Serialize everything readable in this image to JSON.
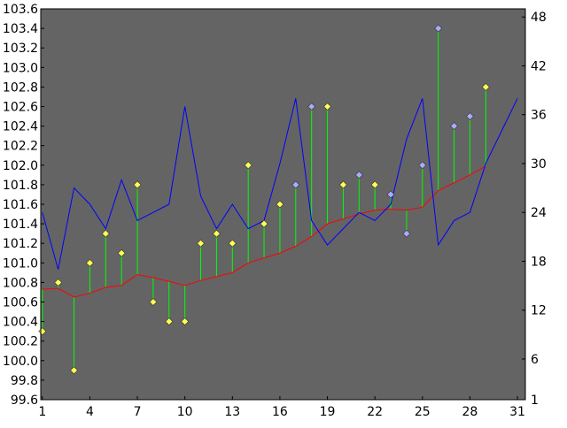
{
  "chart_data": {
    "type": "line",
    "title": "",
    "xlabel": "",
    "ylabel": "",
    "x_ticks": [
      "1",
      "4",
      "7",
      "10",
      "13",
      "16",
      "19",
      "22",
      "25",
      "28",
      "31"
    ],
    "y_left_ticks": [
      "99.6",
      "99.8",
      "100.0",
      "100.2",
      "100.4",
      "100.6",
      "100.8",
      "101.0",
      "101.2",
      "101.4",
      "101.6",
      "101.8",
      "102.0",
      "102.2",
      "102.4",
      "102.6",
      "102.8",
      "103.0",
      "103.2",
      "103.4",
      "103.6"
    ],
    "y_right_ticks": [
      "1",
      "6",
      "12",
      "18",
      "24",
      "30",
      "36",
      "42",
      "48"
    ],
    "ylim_left": [
      99.6,
      103.6
    ],
    "ylim_right": [
      1,
      49
    ],
    "xlim": [
      0.9,
      31.5
    ],
    "grid": false,
    "colors": {
      "plot_background": "#646464",
      "diamond_yellow": "#ffff55",
      "diamond_blue": "#aaaaff",
      "stem": "#00ff00",
      "moving_average": "#ff0000",
      "volume_line": "#0000ff"
    },
    "diamonds": {
      "x": [
        1,
        2,
        3,
        4,
        5,
        6,
        7,
        8,
        9,
        10,
        11,
        12,
        13,
        14,
        15,
        16,
        17,
        18,
        19,
        20,
        21,
        22,
        23,
        24,
        25,
        26,
        27,
        28,
        29
      ],
      "y": [
        100.3,
        100.8,
        99.9,
        101.0,
        101.3,
        101.1,
        101.8,
        100.6,
        100.4,
        100.4,
        101.2,
        101.3,
        101.2,
        102.0,
        101.4,
        101.6,
        101.8,
        102.6,
        102.6,
        101.8,
        101.9,
        101.8,
        101.7,
        101.3,
        102.0,
        103.4,
        102.4,
        102.5,
        102.8
      ],
      "colors": [
        "yellow",
        "yellow",
        "yellow",
        "yellow",
        "yellow",
        "yellow",
        "yellow",
        "yellow",
        "yellow",
        "yellow",
        "yellow",
        "yellow",
        "yellow",
        "yellow",
        "yellow",
        "yellow",
        "blue",
        "blue",
        "yellow",
        "yellow",
        "blue",
        "yellow",
        "blue",
        "blue",
        "blue",
        "blue",
        "blue",
        "blue",
        "yellow"
      ]
    },
    "moving_average": {
      "x": [
        1,
        2,
        3,
        4,
        5,
        6,
        7,
        8,
        9,
        10,
        11,
        12,
        13,
        14,
        15,
        16,
        17,
        18,
        19,
        20,
        21,
        22,
        23,
        24,
        25,
        26,
        27,
        28,
        29
      ],
      "y": [
        100.73,
        100.74,
        100.65,
        100.69,
        100.75,
        100.77,
        100.88,
        100.85,
        100.81,
        100.77,
        100.82,
        100.86,
        100.9,
        101.0,
        101.05,
        101.1,
        101.17,
        101.27,
        101.4,
        101.45,
        101.5,
        101.54,
        101.55,
        101.54,
        101.57,
        101.74,
        101.82,
        101.9,
        101.99
      ]
    },
    "volume": {
      "axis": "right",
      "x": [
        1,
        2,
        3,
        4,
        5,
        6,
        7,
        8,
        9,
        10,
        11,
        12,
        13,
        14,
        15,
        16,
        17,
        18,
        19,
        20,
        21,
        22,
        23,
        24,
        25,
        26,
        27,
        28,
        29,
        30,
        31
      ],
      "y": [
        24,
        17,
        27,
        25,
        22,
        28,
        23,
        24,
        25,
        37,
        26,
        22,
        25,
        22,
        23,
        30,
        38,
        23,
        20,
        22,
        24,
        23,
        25,
        33,
        38,
        20,
        23,
        24,
        30,
        34,
        38
      ]
    }
  }
}
